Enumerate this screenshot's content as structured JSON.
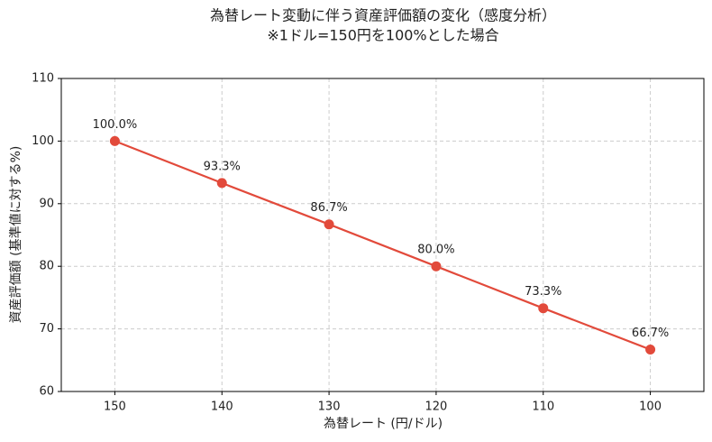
{
  "chart_data": {
    "type": "line",
    "title": "為替レート変動に伴う資産評価額の変化（感度分析）",
    "subtitle": "※1ドル=150円を100%とした場合",
    "x_label": "為替レート (円/ドル)",
    "y_label": "資産評価額 (基準値に対する%)",
    "x": [
      150,
      140,
      130,
      120,
      110,
      100
    ],
    "values": [
      100,
      93.3,
      86.7,
      80,
      73.3,
      66.7
    ],
    "value_labels": [
      "100.0%",
      "93.3%",
      "86.7%",
      "80.0%",
      "73.3%",
      "66.7%"
    ],
    "color": "#e24a3b",
    "xlim": [
      155,
      95
    ],
    "xticks": [
      150,
      140,
      130,
      120,
      110,
      100
    ],
    "ylim": [
      60,
      110
    ],
    "yticks": [
      60,
      70,
      80,
      90,
      100,
      110
    ],
    "grid": true
  }
}
